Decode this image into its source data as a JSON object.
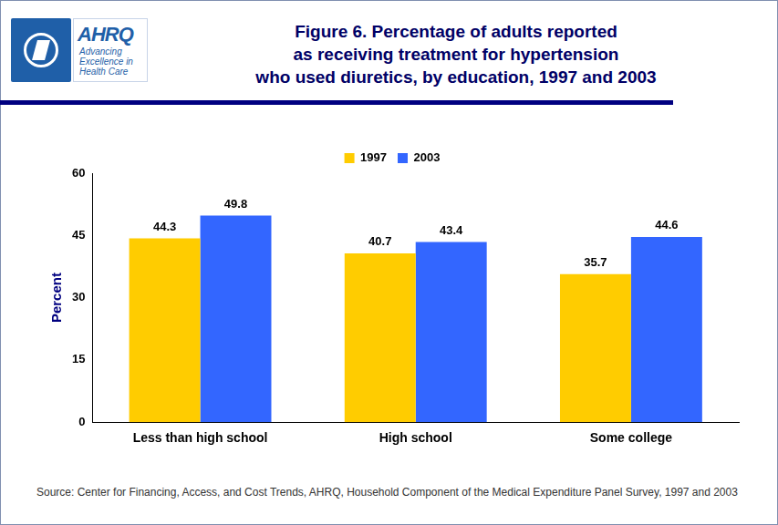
{
  "header": {
    "logo_name": "AHRQ",
    "logo_tagline": "Advancing Excellence in Health Care"
  },
  "chart_data": {
    "type": "bar",
    "title": [
      "Figure 6. Percentage of adults reported",
      "as receiving treatment for hypertension",
      "who used diuretics, by education, 1997 and 2003"
    ],
    "categories": [
      "Less than high school",
      "High school",
      "Some college"
    ],
    "series": [
      {
        "name": "1997",
        "color": "#FFCC00",
        "values": [
          44.3,
          40.7,
          35.7
        ]
      },
      {
        "name": "2003",
        "color": "#3366FF",
        "values": [
          49.8,
          43.4,
          44.6
        ]
      }
    ],
    "ylabel": "Percent",
    "ylim": [
      0,
      60
    ],
    "yticks": [
      0,
      15,
      30,
      45,
      60
    ],
    "grid": false,
    "legend": "top",
    "data_labels": true
  },
  "source": "Source: Center for Financing, Access, and Cost Trends, AHRQ, Household Component of the Medical Expenditure Panel Survey, 1997 and 2003"
}
